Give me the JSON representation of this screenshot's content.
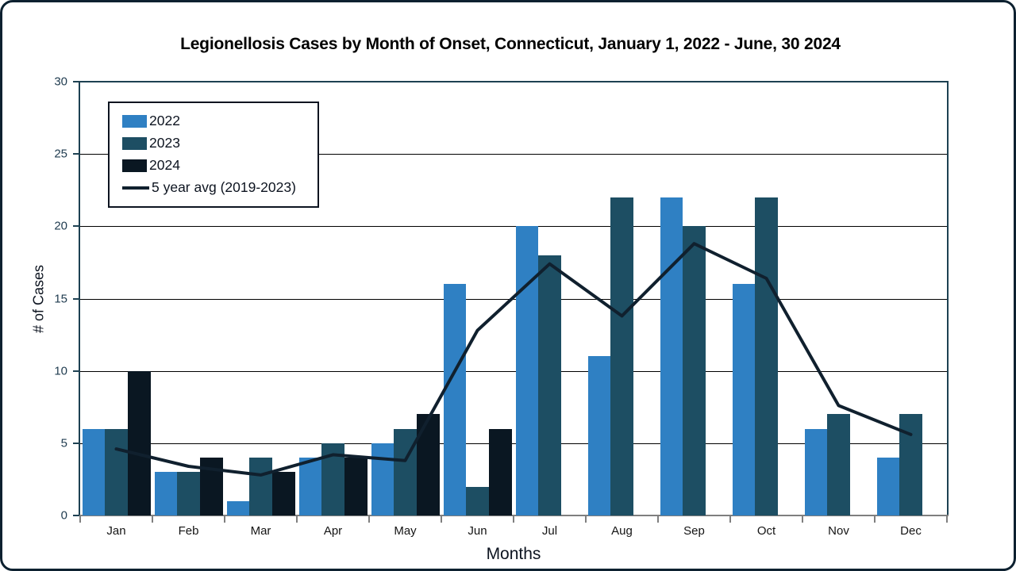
{
  "frame": {
    "border_color": "#0d2130",
    "background": "#ffffff"
  },
  "title": "Legionellosis Cases by Month of Onset, Connecticut, January 1, 2022 - June, 30 2024",
  "y_axis": {
    "label": "# of Cases",
    "ticks": [
      0,
      5,
      10,
      15,
      20,
      25,
      30
    ],
    "min": 0,
    "max": 30,
    "tick_color": "#1f3b4f",
    "axis_color": "#1d4152"
  },
  "x_axis": {
    "label": "Months",
    "axis_color": "#7f7f7f"
  },
  "grid": {
    "color": "#000000",
    "lines_at": [
      5,
      10,
      15,
      20,
      25
    ]
  },
  "legend": {
    "position": "upper-left-inside",
    "border_color": "#0d1420"
  },
  "chart_data": {
    "type": "bar",
    "title": "Legionellosis Cases by Month of Onset, Connecticut, January 1, 2022 - June, 30 2024",
    "xlabel": "Months",
    "ylabel": "# of Cases",
    "ylim": [
      0,
      30
    ],
    "ytick_step": 5,
    "grid": true,
    "legend_position": "upper-left-inside",
    "categories": [
      "Jan",
      "Feb",
      "Mar",
      "Apr",
      "May",
      "Jun",
      "Jul",
      "Aug",
      "Sep",
      "Oct",
      "Nov",
      "Dec"
    ],
    "series": [
      {
        "name": "2022",
        "type": "bar",
        "color": "#2f80c3",
        "values": [
          6,
          3,
          1,
          4,
          5,
          16,
          20,
          11,
          22,
          16,
          6,
          4
        ]
      },
      {
        "name": "2023",
        "type": "bar",
        "color": "#1d4e63",
        "values": [
          6,
          3,
          4,
          5,
          6,
          2,
          18,
          22,
          20,
          22,
          7,
          7
        ]
      },
      {
        "name": "2024",
        "type": "bar",
        "color": "#0a1722",
        "values": [
          10,
          4,
          3,
          4,
          7,
          6,
          null,
          null,
          null,
          null,
          null,
          null
        ]
      },
      {
        "name": "5 year avg (2019-2023)",
        "type": "line",
        "color": "#10202e",
        "line_width": 4,
        "values": [
          4.6,
          3.4,
          2.8,
          4.2,
          3.8,
          12.8,
          17.4,
          13.8,
          18.8,
          16.4,
          7.6,
          5.6
        ]
      }
    ]
  }
}
